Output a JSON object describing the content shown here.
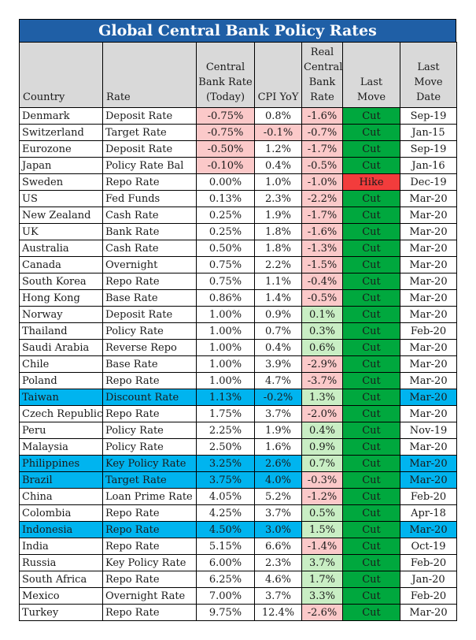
{
  "title": "Global Central Bank Policy Rates",
  "headers": {
    "country": "Country",
    "rate": "Rate",
    "central_bank_rate": [
      "Central",
      "Bank Rate",
      "(Today)"
    ],
    "cpi": "CPI YoY",
    "real_rate": [
      "Real",
      "Central",
      "Bank",
      "Rate"
    ],
    "last_move": "Last Move",
    "last_move_date": [
      "Last",
      "Move",
      "Date"
    ]
  },
  "colors": {
    "title_bg": "#1f5fa6",
    "header_bg": "#d9d9d9",
    "cut": "#00a83e",
    "hike": "#f23c3c",
    "negative": "#fbc9c9",
    "positive": "#c9eec4",
    "highlight": "#00b4ef"
  },
  "rows": [
    {
      "country": "Denmark",
      "rate": "Deposit Rate",
      "cb": "-0.75%",
      "cpi": "0.8%",
      "real": "-1.6%",
      "move": "Cut",
      "date": "Sep-19",
      "cb_neg": true,
      "cpi_neg": false,
      "real_pos": false,
      "hl": false
    },
    {
      "country": "Switzerland",
      "rate": "Target Rate",
      "cb": "-0.75%",
      "cpi": "-0.1%",
      "real": "-0.7%",
      "move": "Cut",
      "date": "Jan-15",
      "cb_neg": true,
      "cpi_neg": true,
      "real_pos": false,
      "hl": false
    },
    {
      "country": "Eurozone",
      "rate": "Deposit Rate",
      "cb": "-0.50%",
      "cpi": "1.2%",
      "real": "-1.7%",
      "move": "Cut",
      "date": "Sep-19",
      "cb_neg": true,
      "cpi_neg": false,
      "real_pos": false,
      "hl": false
    },
    {
      "country": "Japan",
      "rate": "Policy Rate Bal",
      "cb": "-0.10%",
      "cpi": "0.4%",
      "real": "-0.5%",
      "move": "Cut",
      "date": "Jan-16",
      "cb_neg": true,
      "cpi_neg": false,
      "real_pos": false,
      "hl": false
    },
    {
      "country": "Sweden",
      "rate": "Repo Rate",
      "cb": "0.00%",
      "cpi": "1.0%",
      "real": "-1.0%",
      "move": "Hike",
      "date": "Dec-19",
      "cb_neg": false,
      "cpi_neg": false,
      "real_pos": false,
      "hl": false
    },
    {
      "country": "US",
      "rate": "Fed Funds",
      "cb": "0.13%",
      "cpi": "2.3%",
      "real": "-2.2%",
      "move": "Cut",
      "date": "Mar-20",
      "cb_neg": false,
      "cpi_neg": false,
      "real_pos": false,
      "hl": false
    },
    {
      "country": "New Zealand",
      "rate": "Cash Rate",
      "cb": "0.25%",
      "cpi": "1.9%",
      "real": "-1.7%",
      "move": "Cut",
      "date": "Mar-20",
      "cb_neg": false,
      "cpi_neg": false,
      "real_pos": false,
      "hl": false
    },
    {
      "country": "UK",
      "rate": "Bank Rate",
      "cb": "0.25%",
      "cpi": "1.8%",
      "real": "-1.6%",
      "move": "Cut",
      "date": "Mar-20",
      "cb_neg": false,
      "cpi_neg": false,
      "real_pos": false,
      "hl": false
    },
    {
      "country": "Australia",
      "rate": "Cash Rate",
      "cb": "0.50%",
      "cpi": "1.8%",
      "real": "-1.3%",
      "move": "Cut",
      "date": "Mar-20",
      "cb_neg": false,
      "cpi_neg": false,
      "real_pos": false,
      "hl": false
    },
    {
      "country": "Canada",
      "rate": "Overnight",
      "cb": "0.75%",
      "cpi": "2.2%",
      "real": "-1.5%",
      "move": "Cut",
      "date": "Mar-20",
      "cb_neg": false,
      "cpi_neg": false,
      "real_pos": false,
      "hl": false
    },
    {
      "country": "South Korea",
      "rate": "Repo Rate",
      "cb": "0.75%",
      "cpi": "1.1%",
      "real": "-0.4%",
      "move": "Cut",
      "date": "Mar-20",
      "cb_neg": false,
      "cpi_neg": false,
      "real_pos": false,
      "hl": false
    },
    {
      "country": "Hong Kong",
      "rate": "Base Rate",
      "cb": "0.86%",
      "cpi": "1.4%",
      "real": "-0.5%",
      "move": "Cut",
      "date": "Mar-20",
      "cb_neg": false,
      "cpi_neg": false,
      "real_pos": false,
      "hl": false
    },
    {
      "country": "Norway",
      "rate": "Deposit Rate",
      "cb": "1.00%",
      "cpi": "0.9%",
      "real": "0.1%",
      "move": "Cut",
      "date": "Mar-20",
      "cb_neg": false,
      "cpi_neg": false,
      "real_pos": true,
      "hl": false
    },
    {
      "country": "Thailand",
      "rate": "Policy Rate",
      "cb": "1.00%",
      "cpi": "0.7%",
      "real": "0.3%",
      "move": "Cut",
      "date": "Feb-20",
      "cb_neg": false,
      "cpi_neg": false,
      "real_pos": true,
      "hl": false
    },
    {
      "country": "Saudi Arabia",
      "rate": "Reverse Repo",
      "cb": "1.00%",
      "cpi": "0.4%",
      "real": "0.6%",
      "move": "Cut",
      "date": "Mar-20",
      "cb_neg": false,
      "cpi_neg": false,
      "real_pos": true,
      "hl": false
    },
    {
      "country": "Chile",
      "rate": "Base Rate",
      "cb": "1.00%",
      "cpi": "3.9%",
      "real": "-2.9%",
      "move": "Cut",
      "date": "Mar-20",
      "cb_neg": false,
      "cpi_neg": false,
      "real_pos": false,
      "hl": false
    },
    {
      "country": "Poland",
      "rate": "Repo Rate",
      "cb": "1.00%",
      "cpi": "4.7%",
      "real": "-3.7%",
      "move": "Cut",
      "date": "Mar-20",
      "cb_neg": false,
      "cpi_neg": false,
      "real_pos": false,
      "hl": false
    },
    {
      "country": "Taiwan",
      "rate": "Discount Rate",
      "cb": "1.13%",
      "cpi": "-0.2%",
      "real": "1.3%",
      "move": "Cut",
      "date": "Mar-20",
      "cb_neg": false,
      "cpi_neg": true,
      "real_pos": true,
      "hl": true
    },
    {
      "country": "Czech Republic",
      "rate": "Repo Rate",
      "cb": "1.75%",
      "cpi": "3.7%",
      "real": "-2.0%",
      "move": "Cut",
      "date": "Mar-20",
      "cb_neg": false,
      "cpi_neg": false,
      "real_pos": false,
      "hl": false
    },
    {
      "country": "Peru",
      "rate": "Policy Rate",
      "cb": "2.25%",
      "cpi": "1.9%",
      "real": "0.4%",
      "move": "Cut",
      "date": "Nov-19",
      "cb_neg": false,
      "cpi_neg": false,
      "real_pos": true,
      "hl": false
    },
    {
      "country": "Malaysia",
      "rate": "Policy Rate",
      "cb": "2.50%",
      "cpi": "1.6%",
      "real": "0.9%",
      "move": "Cut",
      "date": "Mar-20",
      "cb_neg": false,
      "cpi_neg": false,
      "real_pos": true,
      "hl": false
    },
    {
      "country": "Philippines",
      "rate": "Key Policy Rate",
      "cb": "3.25%",
      "cpi": "2.6%",
      "real": "0.7%",
      "move": "Cut",
      "date": "Mar-20",
      "cb_neg": false,
      "cpi_neg": false,
      "real_pos": true,
      "hl": true
    },
    {
      "country": "Brazil",
      "rate": "Target Rate",
      "cb": "3.75%",
      "cpi": "4.0%",
      "real": "-0.3%",
      "move": "Cut",
      "date": "Mar-20",
      "cb_neg": false,
      "cpi_neg": false,
      "real_pos": false,
      "hl": true
    },
    {
      "country": "China",
      "rate": "Loan Prime Rate",
      "cb": "4.05%",
      "cpi": "5.2%",
      "real": "-1.2%",
      "move": "Cut",
      "date": "Feb-20",
      "cb_neg": false,
      "cpi_neg": false,
      "real_pos": false,
      "hl": false
    },
    {
      "country": "Colombia",
      "rate": "Repo Rate",
      "cb": "4.25%",
      "cpi": "3.7%",
      "real": "0.5%",
      "move": "Cut",
      "date": "Apr-18",
      "cb_neg": false,
      "cpi_neg": false,
      "real_pos": true,
      "hl": false
    },
    {
      "country": "Indonesia",
      "rate": "Repo Rate",
      "cb": "4.50%",
      "cpi": "3.0%",
      "real": "1.5%",
      "move": "Cut",
      "date": "Mar-20",
      "cb_neg": false,
      "cpi_neg": false,
      "real_pos": true,
      "hl": true
    },
    {
      "country": "India",
      "rate": "Repo Rate",
      "cb": "5.15%",
      "cpi": "6.6%",
      "real": "-1.4%",
      "move": "Cut",
      "date": "Oct-19",
      "cb_neg": false,
      "cpi_neg": false,
      "real_pos": false,
      "hl": false
    },
    {
      "country": "Russia",
      "rate": "Key Policy Rate",
      "cb": "6.00%",
      "cpi": "2.3%",
      "real": "3.7%",
      "move": "Cut",
      "date": "Feb-20",
      "cb_neg": false,
      "cpi_neg": false,
      "real_pos": true,
      "hl": false
    },
    {
      "country": "South Africa",
      "rate": "Repo Rate",
      "cb": "6.25%",
      "cpi": "4.6%",
      "real": "1.7%",
      "move": "Cut",
      "date": "Jan-20",
      "cb_neg": false,
      "cpi_neg": false,
      "real_pos": true,
      "hl": false
    },
    {
      "country": "Mexico",
      "rate": "Overnight Rate",
      "cb": "7.00%",
      "cpi": "3.7%",
      "real": "3.3%",
      "move": "Cut",
      "date": "Feb-20",
      "cb_neg": false,
      "cpi_neg": false,
      "real_pos": true,
      "hl": false
    },
    {
      "country": "Turkey",
      "rate": "Repo Rate",
      "cb": "9.75%",
      "cpi": "12.4%",
      "real": "-2.6%",
      "move": "Cut",
      "date": "Mar-20",
      "cb_neg": false,
      "cpi_neg": false,
      "real_pos": false,
      "hl": false
    }
  ]
}
